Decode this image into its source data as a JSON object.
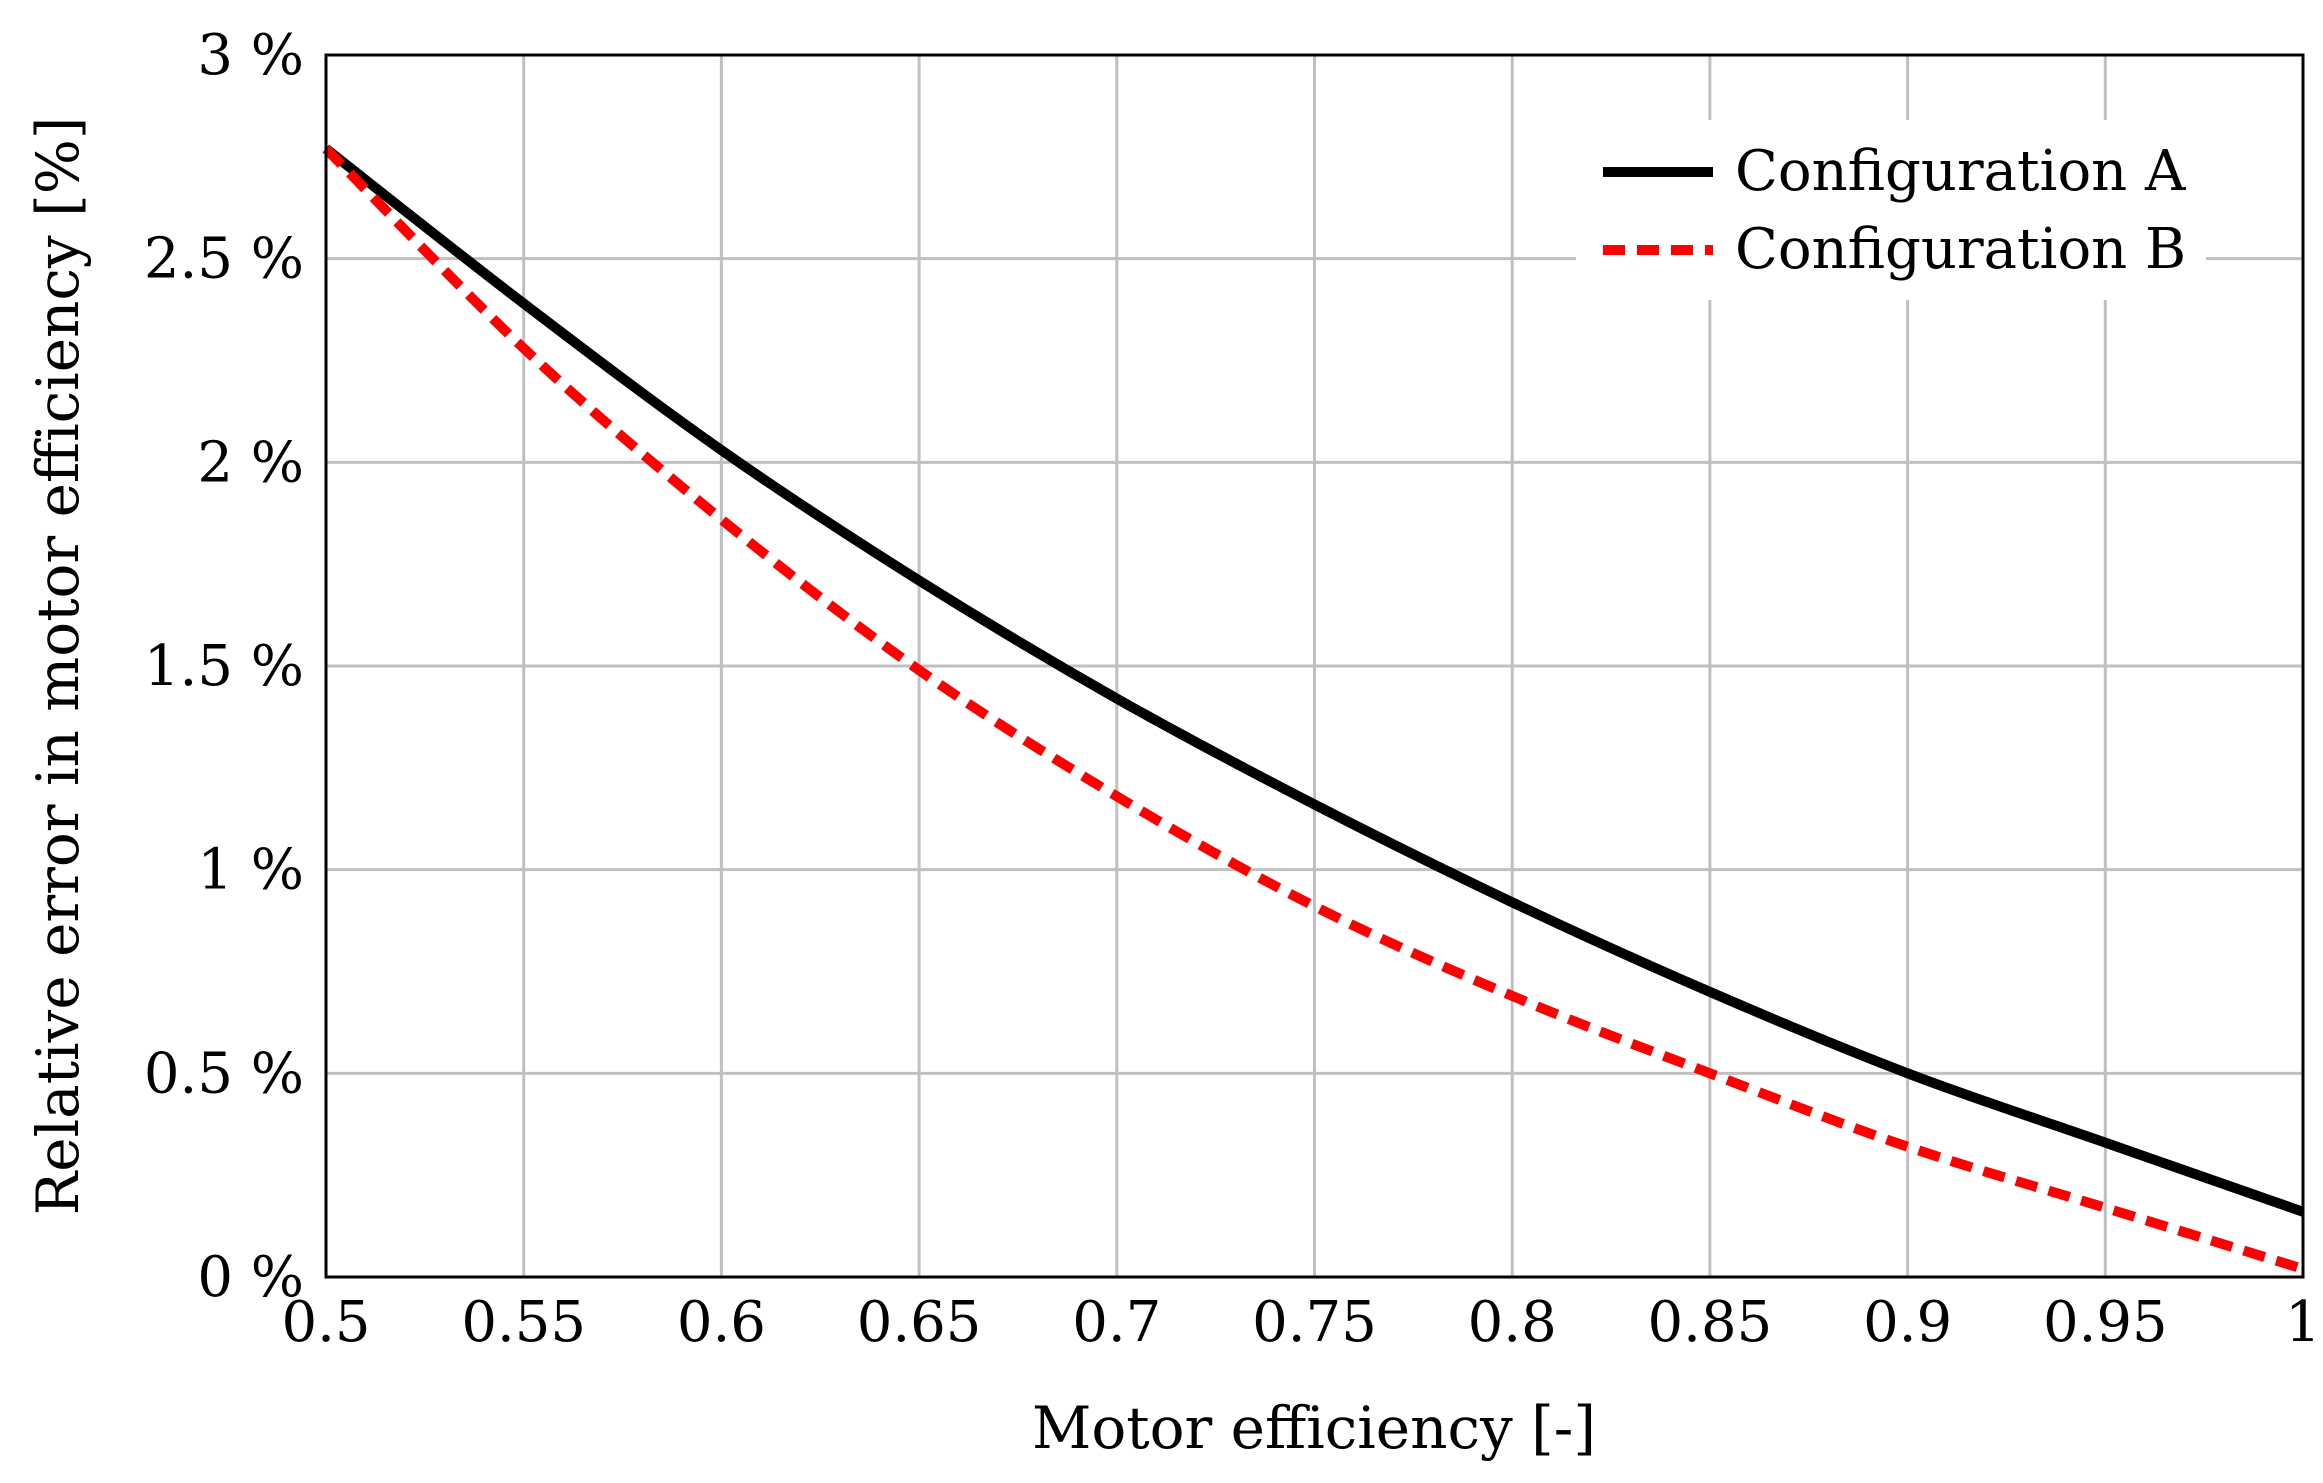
{
  "chart_data": {
    "type": "line",
    "title": "",
    "xlabel": "Motor efficiency [-]",
    "ylabel": "Relative error in motor efficiency [%]",
    "xlim": [
      0.5,
      1.0
    ],
    "ylim": [
      0,
      3
    ],
    "xticks": [
      0.5,
      0.55,
      0.6,
      0.65,
      0.7,
      0.75,
      0.8,
      0.85,
      0.9,
      0.95,
      1.0
    ],
    "xtick_labels": [
      "0.5",
      "0.55",
      "0.6",
      "0.65",
      "0.7",
      "0.75",
      "0.8",
      "0.85",
      "0.9",
      "0.95",
      "1"
    ],
    "yticks": [
      0,
      0.5,
      1,
      1.5,
      2,
      2.5,
      3
    ],
    "ytick_labels": [
      "0 %",
      "0.5 %",
      "1 %",
      "1.5 %",
      "2 %",
      "2.5 %",
      "3 %"
    ],
    "grid": true,
    "legend_position": "top-right",
    "x": [
      0.5,
      0.55,
      0.6,
      0.65,
      0.7,
      0.75,
      0.8,
      0.85,
      0.9,
      0.95,
      1.0
    ],
    "series": [
      {
        "name": "Configuration A",
        "color": "#000000",
        "style": "solid",
        "values": [
          2.77,
          2.39,
          2.03,
          1.71,
          1.42,
          1.16,
          0.92,
          0.7,
          0.5,
          0.33,
          0.16
        ]
      },
      {
        "name": "Configuration B",
        "color": "#ff0000",
        "style": "dashed",
        "values": [
          2.77,
          2.28,
          1.86,
          1.49,
          1.18,
          0.91,
          0.69,
          0.5,
          0.32,
          0.17,
          0.02
        ]
      }
    ]
  }
}
